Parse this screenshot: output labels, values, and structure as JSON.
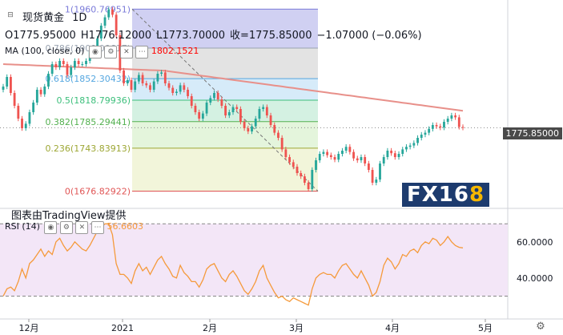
{
  "header": {
    "symbol": "现货黄金",
    "interval": "1D",
    "ohlc_open": "O1775.95000",
    "ohlc_high": "H1776.12000",
    "ohlc_low": "L1773.70000",
    "ohlc_close": "收=1775.85000",
    "change": "−1.07000 (−0.06%)"
  },
  "ma": {
    "label": "MA (100, close, 0)",
    "value": "1802.1521"
  },
  "rsi": {
    "label": "RSI (14)",
    "value": "56.6603"
  },
  "credit": "图表由TradingView提供",
  "last_price": "1775.85000",
  "logo_main": "FX16",
  "logo_accent": "8",
  "colors": {
    "up": "#26a69a",
    "down": "#ef5350",
    "ma_line": "#e8908a",
    "rsi_line": "#f59a3b",
    "rsi_bg": "#f3e6f7"
  },
  "icons": [
    "sidebar-toggle-icon",
    "eye-icon",
    "settings-icon",
    "close-icon",
    "more-icon",
    "settings-gear-icon"
  ],
  "chart_data": [
    {
      "type": "candlestick",
      "title": "现货黄金, 1D",
      "x_ticks": [
        "12月",
        "2021",
        "2月",
        "3月",
        "4月",
        "5月"
      ],
      "ylim": [
        1660,
        1975
      ],
      "fib_levels": [
        {
          "label": "1(1960.76951)",
          "value": 1960.76951
        },
        {
          "label": "0.786(1900.00617)",
          "value": 1900.00617
        },
        {
          "label": "0.618(1852.30432)",
          "value": 1852.30432
        },
        {
          "label": "0.5(1818.79936)",
          "value": 1818.79936
        },
        {
          "label": "0.382(1785.29441)",
          "value": 1785.29441
        },
        {
          "label": "0.236(1743.83913)",
          "value": 1743.83913
        },
        {
          "label": "0(1676.82922)",
          "value": 1676.82922
        }
      ],
      "closes": [
        1840,
        1855,
        1830,
        1810,
        1790,
        1775,
        1782,
        1800,
        1815,
        1835,
        1828,
        1840,
        1860,
        1875,
        1870,
        1880,
        1875,
        1858,
        1870,
        1880,
        1875,
        1875,
        1880,
        1895,
        1900,
        1915,
        1935,
        1948,
        1960,
        1952,
        1920,
        1865,
        1845,
        1850,
        1835,
        1848,
        1858,
        1845,
        1842,
        1835,
        1848,
        1860,
        1862,
        1845,
        1838,
        1830,
        1832,
        1842,
        1835,
        1825,
        1810,
        1800,
        1790,
        1798,
        1815,
        1822,
        1830,
        1820,
        1810,
        1795,
        1800,
        1808,
        1805,
        1785,
        1775,
        1770,
        1778,
        1790,
        1805,
        1808,
        1795,
        1780,
        1768,
        1760,
        1742,
        1730,
        1722,
        1715,
        1705,
        1700,
        1690,
        1680,
        1710,
        1725,
        1735,
        1738,
        1733,
        1730,
        1726,
        1735,
        1740,
        1746,
        1738,
        1728,
        1725,
        1730,
        1720,
        1710,
        1690,
        1695,
        1720,
        1730,
        1740,
        1736,
        1730,
        1735,
        1742,
        1746,
        1748,
        1752,
        1760,
        1765,
        1768,
        1774,
        1780,
        1778,
        1776,
        1785,
        1790,
        1795,
        1792,
        1777,
        1775.85
      ],
      "ma100_start": 1875,
      "ma100_end": 1802.1521,
      "last": 1775.85
    },
    {
      "type": "line",
      "title": "RSI (14)",
      "ylim": [
        20,
        75
      ],
      "y_ticks": [
        40,
        60
      ],
      "guides": [
        70,
        30
      ],
      "values": [
        30,
        34,
        35,
        33,
        38,
        45,
        40,
        48,
        50,
        53,
        56,
        52,
        55,
        53,
        60,
        62,
        58,
        55,
        57,
        60,
        58,
        56,
        55,
        58,
        62,
        66,
        68,
        70,
        70,
        64,
        48,
        42,
        42,
        40,
        37,
        44,
        48,
        44,
        46,
        42,
        46,
        50,
        52,
        48,
        45,
        41,
        40,
        47,
        43,
        41,
        38,
        38,
        35,
        39,
        45,
        47,
        48,
        44,
        40,
        38,
        42,
        44,
        41,
        37,
        33,
        31,
        34,
        38,
        44,
        47,
        40,
        36,
        32,
        29,
        30,
        28,
        27,
        29,
        28,
        27,
        26,
        25,
        34,
        40,
        42,
        43,
        42,
        42,
        40,
        44,
        47,
        48,
        45,
        42,
        40,
        44,
        40,
        36,
        30,
        32,
        38,
        47,
        51,
        49,
        45,
        48,
        53,
        52,
        55,
        56,
        54,
        58,
        60,
        59,
        62,
        61,
        58,
        60,
        63,
        60,
        58,
        57,
        56.66
      ]
    }
  ]
}
